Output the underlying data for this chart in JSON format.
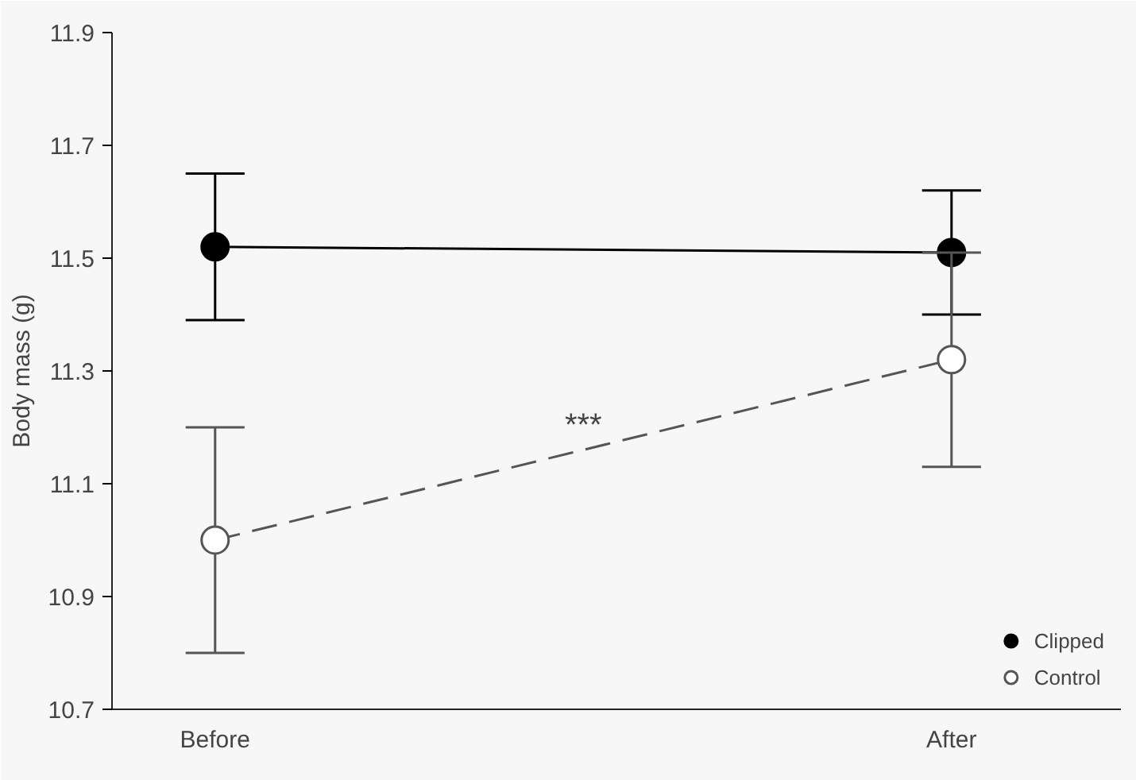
{
  "chart_data": {
    "type": "line",
    "ylabel": "Body mass (g)",
    "categories": [
      "Before",
      "After"
    ],
    "series": [
      {
        "name": "Clipped",
        "color": "#000000",
        "values": [
          11.52,
          11.51
        ],
        "errors": [
          [
            11.39,
            11.65
          ],
          [
            11.4,
            11.62
          ]
        ],
        "line_style": "solid"
      },
      {
        "name": "Control",
        "color": "#ffffff",
        "values": [
          11.0,
          11.32
        ],
        "errors": [
          0.2,
          0.19
        ],
        "line_style": "dashed"
      }
    ],
    "ylim": [
      10.7,
      11.9
    ],
    "yticks": [
      10.7,
      10.9,
      11.1,
      11.3,
      11.5,
      11.7,
      11.9
    ],
    "grid": false,
    "legend": "bottom right",
    "marker": "circle",
    "annotations": [
      "***"
    ]
  }
}
